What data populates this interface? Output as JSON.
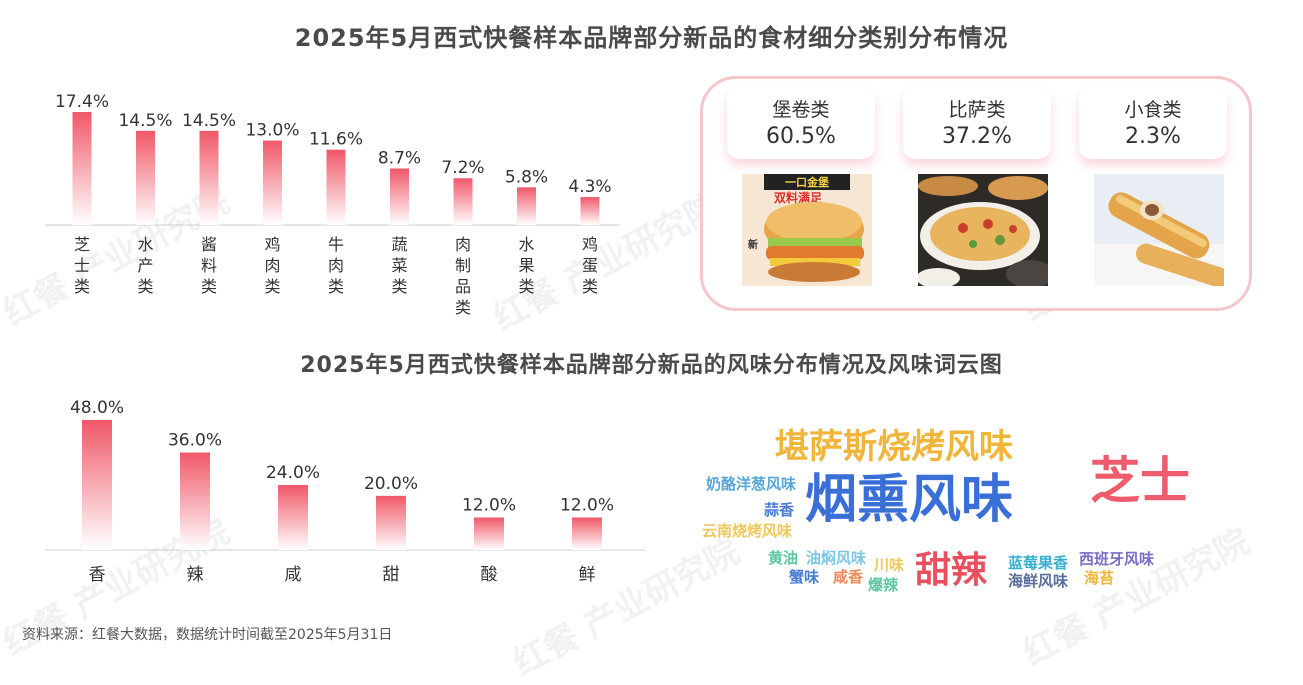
{
  "title_top": "2025年5月西式快餐样本品牌部分新品的食材细分类别分布情况",
  "title_bottom": "2025年5月西式快餐样本品牌部分新品的风味分布情况及风味词云图",
  "watermark": "红餐 产业研究院",
  "colors": {
    "bar_top": "#f05868",
    "bar_bottom": "#ffffff",
    "panel_border": "#f7c6cc"
  },
  "chart_data": [
    {
      "type": "bar",
      "title": "2025年5月西式快餐样本品牌部分新品的食材细分类别分布情况",
      "categories": [
        "芝士类",
        "水产类",
        "酱料类",
        "鸡肉类",
        "牛肉类",
        "蔬菜类",
        "肉制品类",
        "水果类",
        "鸡蛋类"
      ],
      "values": [
        17.4,
        14.5,
        14.5,
        13.0,
        11.6,
        8.7,
        7.2,
        5.8,
        4.3
      ],
      "value_labels": [
        "17.4%",
        "14.5%",
        "14.5%",
        "13.0%",
        "11.6%",
        "8.7%",
        "7.2%",
        "5.8%",
        "4.3%"
      ],
      "label_orientation": "vertical",
      "grid": false,
      "ylim": [
        0,
        20
      ]
    },
    {
      "type": "bar",
      "title": "2025年5月西式快餐样本品牌部分新品的风味分布情况及风味词云图",
      "categories": [
        "香",
        "辣",
        "咸",
        "甜",
        "酸",
        "鲜"
      ],
      "values": [
        48.0,
        36.0,
        24.0,
        20.0,
        12.0,
        12.0
      ],
      "value_labels": [
        "48.0%",
        "36.0%",
        "24.0%",
        "20.0%",
        "12.0%",
        "12.0%"
      ],
      "grid": false,
      "ylim": [
        0,
        50
      ]
    }
  ],
  "food_categories": [
    {
      "name": "堡卷类",
      "pct": "60.5%",
      "image": "burger-photo"
    },
    {
      "name": "比萨类",
      "pct": "37.2%",
      "image": "pizza-photo"
    },
    {
      "name": "小食类",
      "pct": "2.3%",
      "image": "snack-roll-photo"
    }
  ],
  "burger_banner": "一口金堡",
  "burger_subtitle": "双料满足",
  "burger_badge": "新",
  "word_cloud": [
    {
      "text": "烟熏风味",
      "color": "#3a6fd8"
    },
    {
      "text": "芝士",
      "color": "#ee5c6c"
    },
    {
      "text": "堪萨斯烧烤风味",
      "color": "#f0b53a"
    },
    {
      "text": "甜辣",
      "color": "#e8505f"
    },
    {
      "text": "奶酪洋葱风味",
      "color": "#58a6d8"
    },
    {
      "text": "蒜香",
      "color": "#4a7dd2"
    },
    {
      "text": "云南烧烤风味",
      "color": "#f0c75a"
    },
    {
      "text": "黄油",
      "color": "#5cc8a0"
    },
    {
      "text": "油焖风味",
      "color": "#7ec6e6"
    },
    {
      "text": "川味",
      "color": "#f0c75a"
    },
    {
      "text": "蟹味",
      "color": "#4a7dd2"
    },
    {
      "text": "咸香",
      "color": "#f08a58"
    },
    {
      "text": "爆辣",
      "color": "#5cc8a0"
    },
    {
      "text": "蓝莓果香",
      "color": "#3ab0d0"
    },
    {
      "text": "西班牙风味",
      "color": "#7a6cc8"
    },
    {
      "text": "海鲜风味",
      "color": "#5a6e9a"
    },
    {
      "text": "海苔",
      "color": "#f0b53a"
    }
  ],
  "footnote": "资料来源：红餐大数据，数据统计时间截至2025年5月31日"
}
